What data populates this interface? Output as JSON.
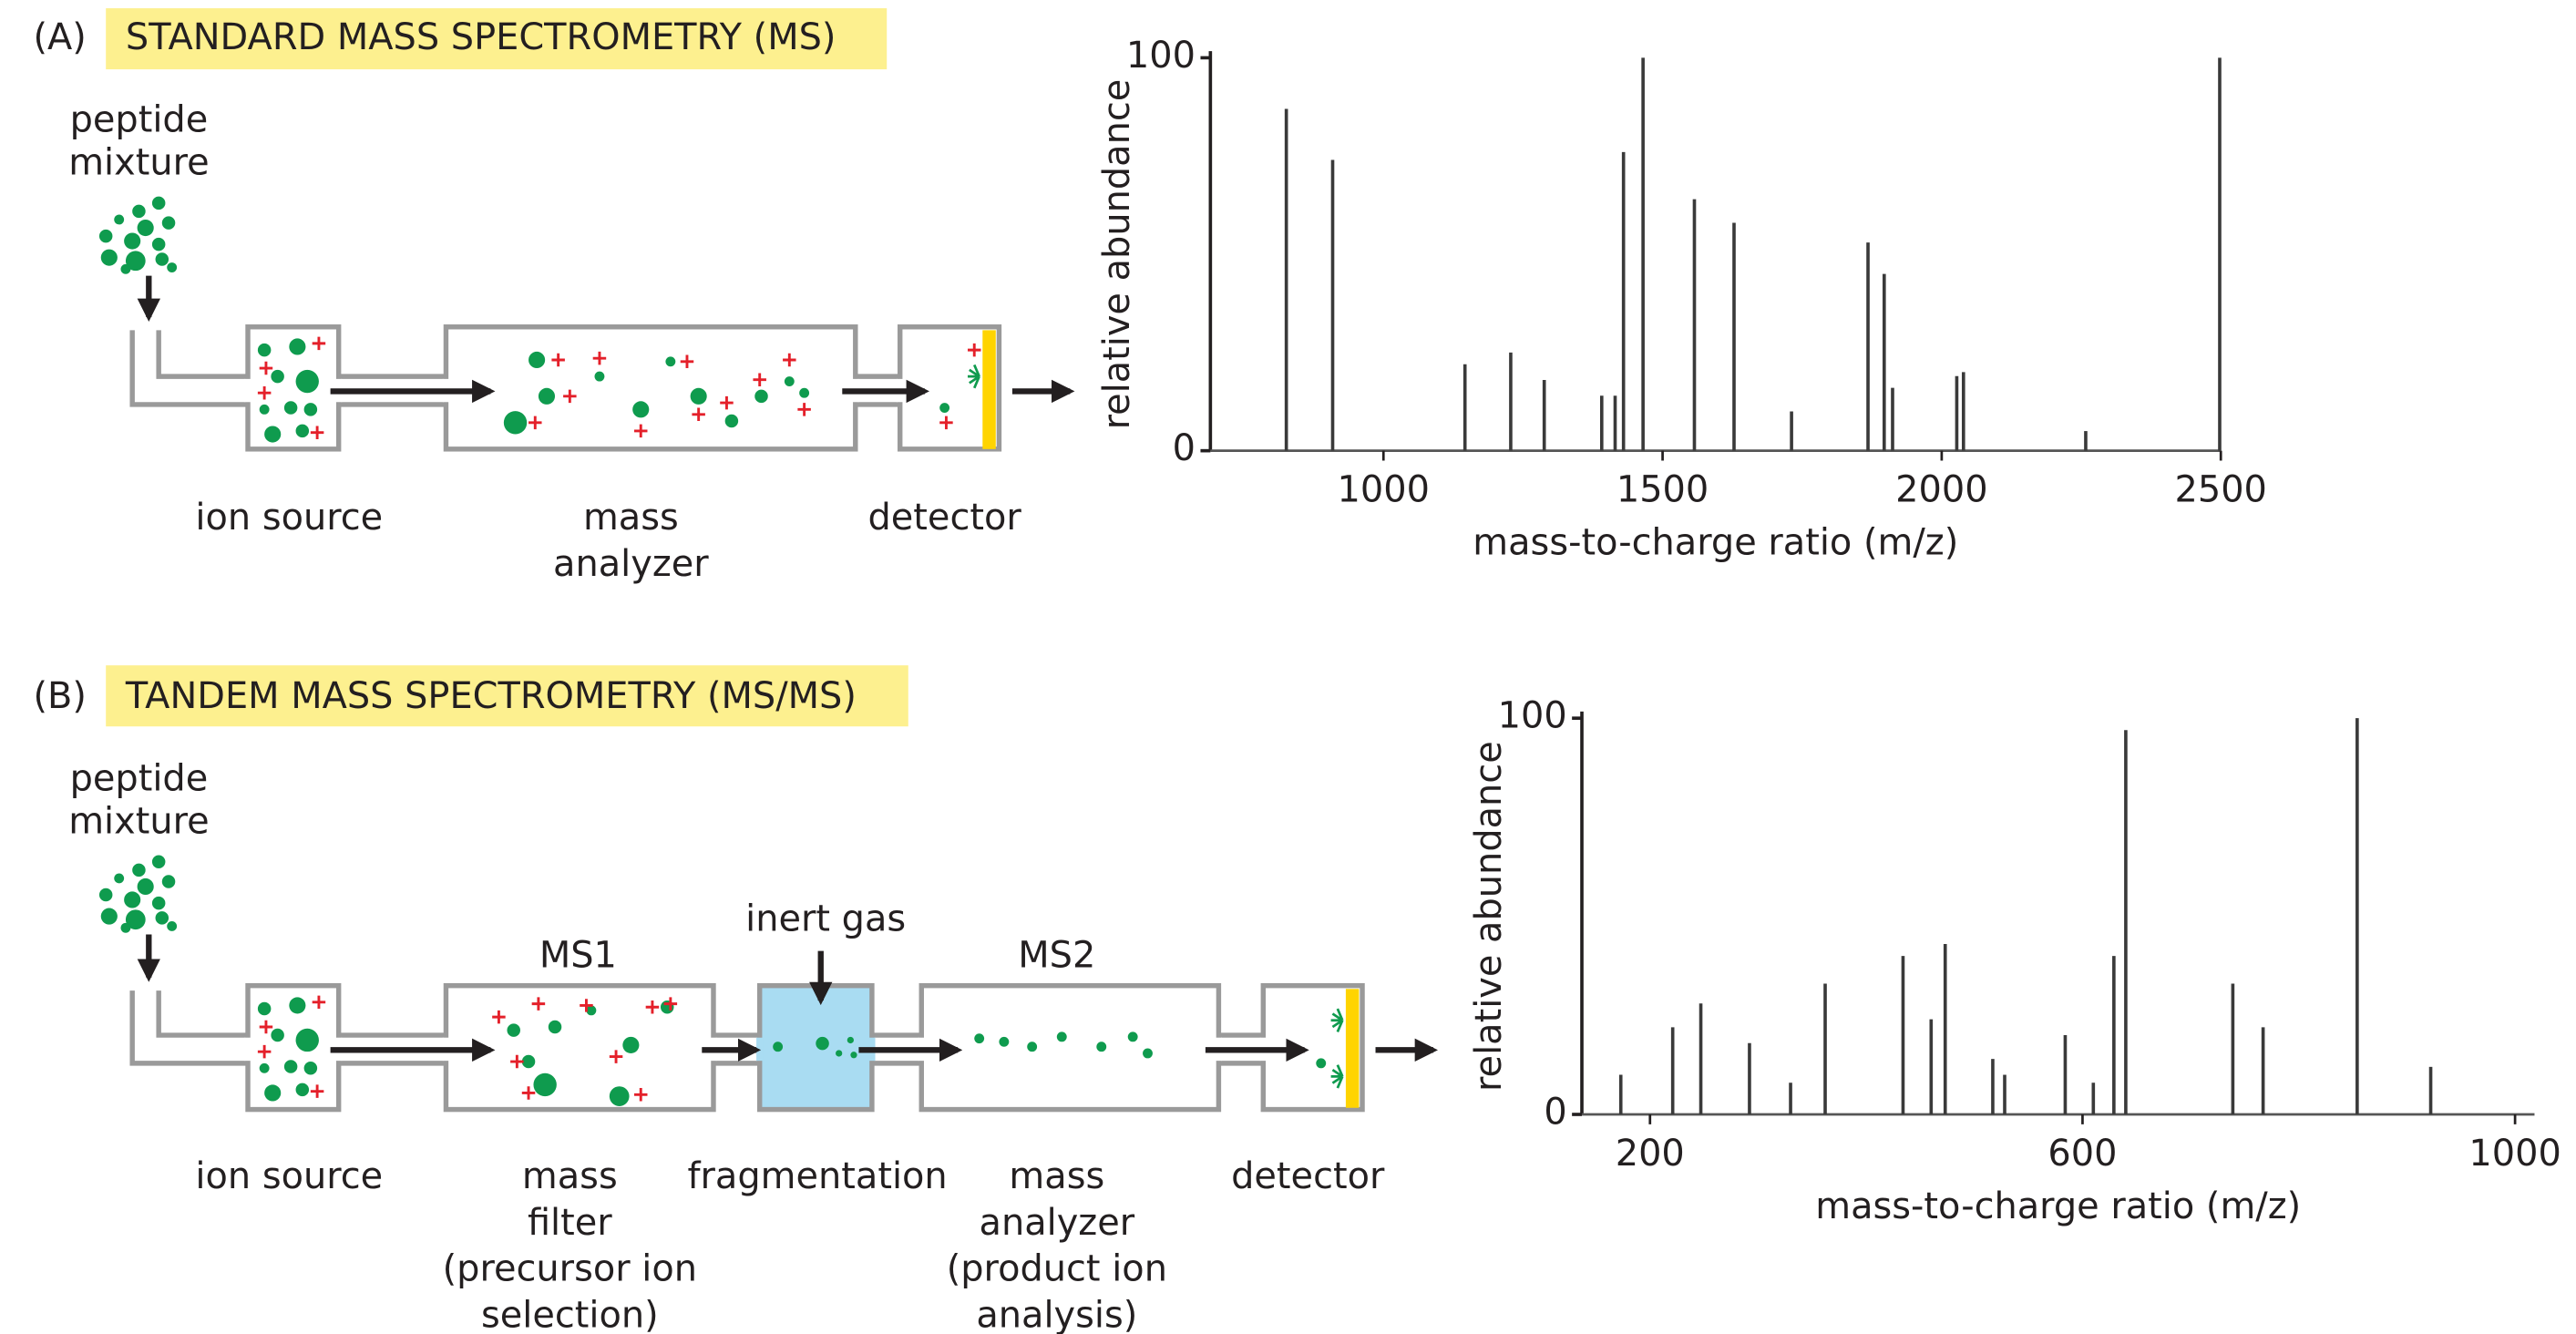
{
  "panels": [
    {
      "letter": "(A)",
      "title": "STANDARD MASS SPECTROMETRY (MS)",
      "sample": [
        "peptide",
        "mixture"
      ],
      "stages": [
        [
          "ion source"
        ],
        [
          "mass",
          "analyzer"
        ],
        [
          "detector"
        ]
      ]
    },
    {
      "letter": "(B)",
      "title": "TANDEM MASS SPECTROMETRY (MS/MS)",
      "sample": [
        "peptide",
        "mixture"
      ],
      "chamber_labels": [
        "MS1",
        "inert gas",
        "MS2"
      ],
      "stages": [
        [
          "ion source"
        ],
        [
          "mass",
          "filter",
          "(precursor ion",
          "selection)"
        ],
        [
          "fragmentation"
        ],
        [
          "mass",
          "analyzer",
          "(product ion",
          "analysis)"
        ],
        [
          "detector"
        ]
      ]
    }
  ],
  "chart_data": [
    {
      "type": "stem",
      "x_label": "mass-to-charge ratio (m/z)",
      "y_label": "relative abundance",
      "color": "#3a3a3a",
      "x": [
        826,
        909,
        1146,
        1228,
        1288,
        1391,
        1415,
        1430,
        1465,
        1557,
        1628,
        1731,
        1868,
        1897,
        1912,
        2027,
        2039,
        2258,
        2498
      ],
      "values": [
        87,
        74,
        22,
        25,
        18,
        14,
        14,
        76,
        100,
        64,
        58,
        10,
        53,
        45,
        16,
        19,
        20,
        5,
        100
      ],
      "xlim": [
        690,
        2500
      ],
      "ylim": [
        0,
        100
      ],
      "xticks": [
        1000,
        1500,
        2000,
        2500
      ],
      "yticks": [
        0,
        100
      ]
    },
    {
      "type": "stem",
      "x_label": "mass-to-charge ratio (m/z)",
      "y_label": "relative abundance",
      "color": "#3a3a3a",
      "x": [
        173,
        221,
        247,
        292,
        330,
        362,
        434,
        460,
        473,
        517,
        528,
        584,
        610,
        629,
        640,
        739,
        767,
        854,
        922
      ],
      "values": [
        10,
        22,
        28,
        18,
        8,
        33,
        40,
        24,
        43,
        14,
        10,
        20,
        8,
        40,
        97,
        33,
        22,
        100,
        12
      ],
      "xlim": [
        137,
        1018
      ],
      "ylim": [
        0,
        100
      ],
      "xticks": [
        200,
        600,
        1000
      ],
      "yticks": [
        0,
        100
      ]
    }
  ]
}
